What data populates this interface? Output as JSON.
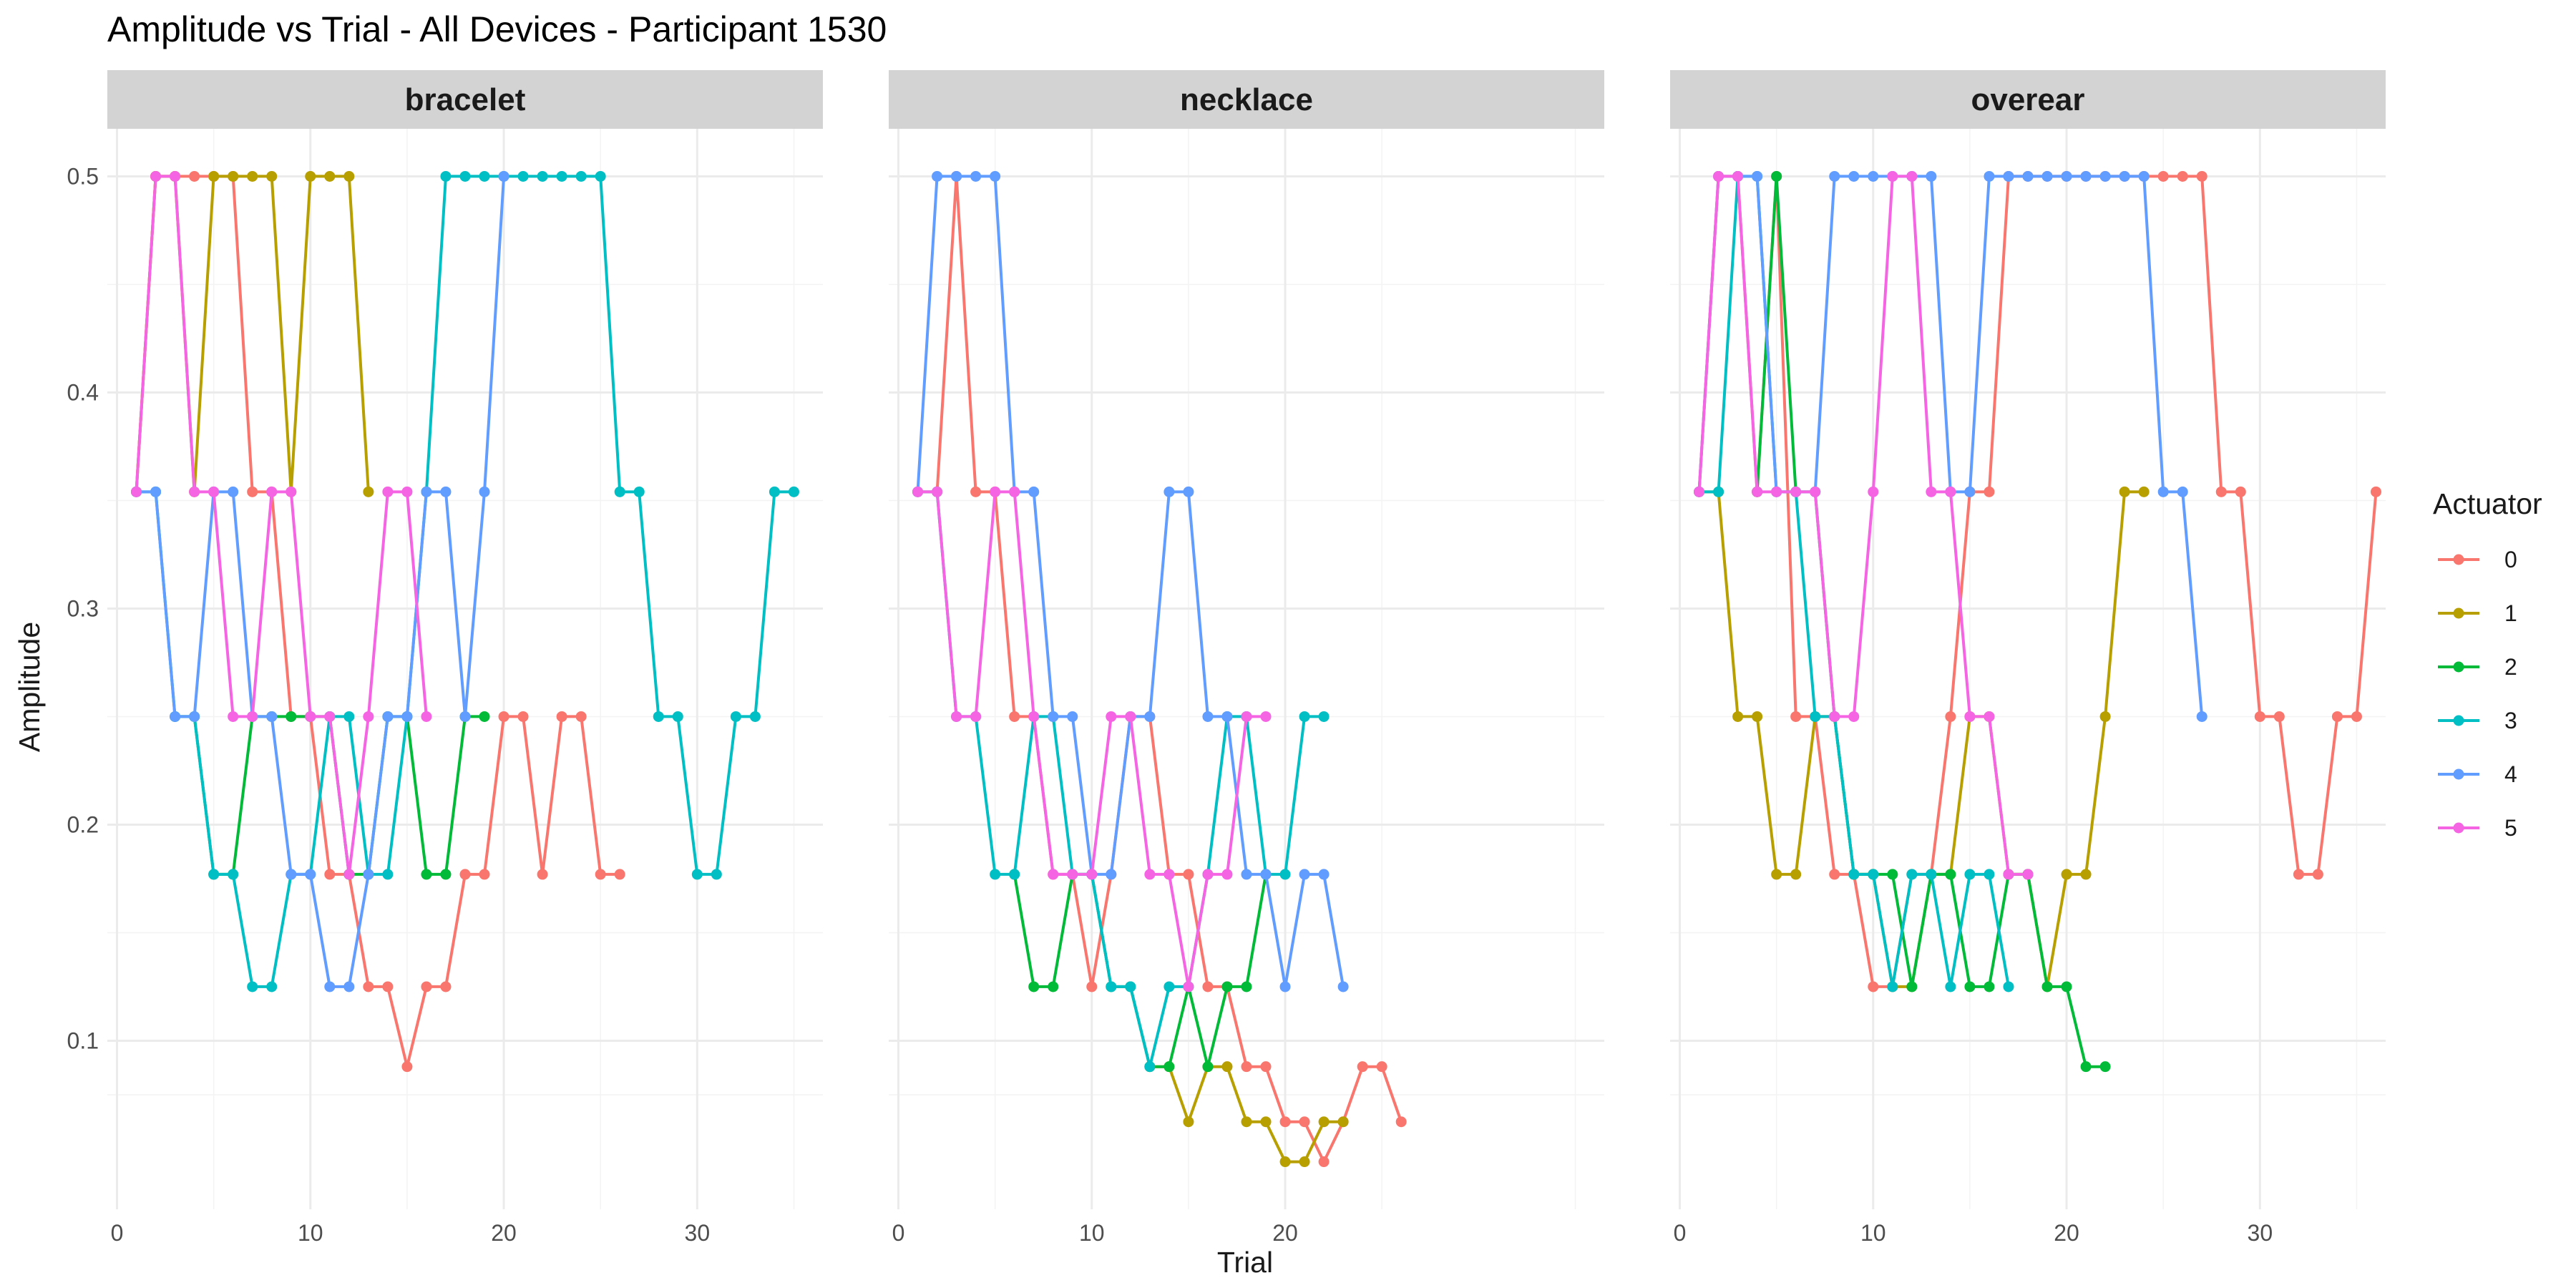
{
  "chart_data": {
    "type": "line",
    "title": "Amplitude vs Trial - All Devices - Participant 1530",
    "xlabel": "Trial",
    "ylabel": "Amplitude",
    "xlim": [
      -0.5,
      36.5
    ],
    "ylim": [
      0.022,
      0.522
    ],
    "x_ticks": [
      0,
      10,
      20,
      30
    ],
    "y_ticks": [
      0.1,
      0.2,
      0.3,
      0.4,
      0.5
    ],
    "grid": true,
    "legend": {
      "title": "Actuator",
      "position": "right",
      "entries": [
        "0",
        "1",
        "2",
        "3",
        "4",
        "5"
      ]
    },
    "colors": {
      "0": "#F8766D",
      "1": "#B79F00",
      "2": "#00BA38",
      "3": "#00BFC4",
      "4": "#619CFF",
      "5": "#F564E3"
    },
    "panels": [
      {
        "name": "bracelet",
        "x_ticks": [
          0,
          10,
          20,
          30
        ],
        "series": [
          {
            "name": "0",
            "x": [
              1,
              2,
              3,
              4,
              5,
              6,
              7,
              8,
              9,
              10,
              11,
              12,
              13,
              14,
              15,
              16,
              17,
              18,
              19,
              20,
              21,
              22,
              23,
              24,
              25,
              26
            ],
            "y": [
              0.354,
              0.5,
              0.5,
              0.5,
              0.5,
              0.5,
              0.354,
              0.354,
              0.25,
              0.25,
              0.177,
              0.177,
              0.125,
              0.125,
              0.088,
              0.125,
              0.125,
              0.177,
              0.177,
              0.25,
              0.25,
              0.177,
              0.25,
              0.25,
              0.177,
              0.177
            ]
          },
          {
            "name": "1",
            "x": [
              1,
              2,
              3,
              4,
              5,
              6,
              7,
              8,
              9,
              10,
              11,
              12,
              13
            ],
            "y": [
              0.354,
              0.5,
              0.5,
              0.354,
              0.5,
              0.5,
              0.5,
              0.5,
              0.354,
              0.5,
              0.5,
              0.5,
              0.354
            ]
          },
          {
            "name": "2",
            "x": [
              3,
              4,
              5,
              6,
              7,
              8,
              9,
              10,
              11,
              12,
              13,
              14,
              15,
              16,
              17,
              18,
              19
            ],
            "y": [
              0.25,
              0.25,
              0.177,
              0.177,
              0.25,
              0.25,
              0.25,
              0.25,
              0.25,
              0.177,
              0.177,
              0.25,
              0.25,
              0.177,
              0.177,
              0.25,
              0.25
            ]
          },
          {
            "name": "3",
            "x": [
              1,
              2,
              3,
              4,
              5,
              6,
              7,
              8,
              9,
              10,
              11,
              12,
              13,
              14,
              15,
              16,
              17,
              18,
              19,
              20,
              21,
              22,
              23,
              24,
              25,
              26,
              27,
              28,
              29,
              30,
              31,
              32,
              33,
              34,
              35
            ],
            "y": [
              0.354,
              0.354,
              0.25,
              0.25,
              0.177,
              0.177,
              0.125,
              0.125,
              0.177,
              0.177,
              0.25,
              0.25,
              0.177,
              0.177,
              0.25,
              0.354,
              0.5,
              0.5,
              0.5,
              0.5,
              0.5,
              0.5,
              0.5,
              0.5,
              0.5,
              0.354,
              0.354,
              0.25,
              0.25,
              0.177,
              0.177,
              0.25,
              0.25,
              0.354,
              0.354
            ]
          },
          {
            "name": "4",
            "x": [
              1,
              2,
              3,
              4,
              5,
              6,
              7,
              8,
              9,
              10,
              11,
              12,
              13,
              14,
              15,
              16,
              17,
              18,
              19,
              20
            ],
            "y": [
              0.354,
              0.354,
              0.25,
              0.25,
              0.354,
              0.354,
              0.25,
              0.25,
              0.177,
              0.177,
              0.125,
              0.125,
              0.177,
              0.25,
              0.25,
              0.354,
              0.354,
              0.25,
              0.354,
              0.5
            ]
          },
          {
            "name": "5",
            "x": [
              1,
              2,
              3,
              4,
              5,
              6,
              7,
              8,
              9,
              10,
              11,
              12,
              13,
              14,
              15,
              16
            ],
            "y": [
              0.354,
              0.5,
              0.5,
              0.354,
              0.354,
              0.25,
              0.25,
              0.354,
              0.354,
              0.25,
              0.25,
              0.177,
              0.25,
              0.354,
              0.354,
              0.25
            ]
          }
        ]
      },
      {
        "name": "necklace",
        "x_ticks": [
          0,
          10,
          20
        ],
        "series": [
          {
            "name": "0",
            "x": [
              1,
              2,
              3,
              4,
              5,
              6,
              7,
              8,
              9,
              10,
              11,
              12,
              13,
              14,
              15,
              16,
              17,
              18,
              19,
              20,
              21,
              22,
              23,
              24,
              25,
              26
            ],
            "y": [
              0.354,
              0.354,
              0.5,
              0.354,
              0.354,
              0.25,
              0.25,
              0.177,
              0.177,
              0.125,
              0.177,
              0.25,
              0.25,
              0.177,
              0.177,
              0.125,
              0.125,
              0.088,
              0.088,
              0.0625,
              0.0625,
              0.044,
              0.0625,
              0.088,
              0.088,
              0.0625
            ]
          },
          {
            "name": "1",
            "x": [
              13,
              14,
              15,
              16,
              17,
              18,
              19,
              20,
              21,
              22,
              23
            ],
            "y": [
              0.088,
              0.088,
              0.0625,
              0.088,
              0.088,
              0.0625,
              0.0625,
              0.044,
              0.044,
              0.0625,
              0.0625
            ]
          },
          {
            "name": "2",
            "x": [
              6,
              7,
              8,
              9,
              10,
              11,
              12,
              13,
              14,
              15,
              16,
              17,
              18,
              19
            ],
            "y": [
              0.177,
              0.125,
              0.125,
              0.177,
              0.177,
              0.125,
              0.125,
              0.088,
              0.088,
              0.125,
              0.088,
              0.125,
              0.125,
              0.177
            ]
          },
          {
            "name": "3",
            "x": [
              1,
              2,
              3,
              4,
              5,
              6,
              7,
              8,
              9,
              10,
              11,
              12,
              13,
              14,
              15,
              16,
              17,
              18,
              19,
              20,
              21,
              22
            ],
            "y": [
              0.354,
              0.354,
              0.25,
              0.25,
              0.177,
              0.177,
              0.25,
              0.25,
              0.177,
              0.177,
              0.125,
              0.125,
              0.088,
              0.125,
              0.125,
              0.177,
              0.25,
              0.25,
              0.177,
              0.177,
              0.25,
              0.25
            ]
          },
          {
            "name": "4",
            "x": [
              1,
              2,
              3,
              4,
              5,
              6,
              7,
              8,
              9,
              10,
              11,
              12,
              13,
              14,
              15,
              16,
              17,
              18,
              19,
              20,
              21,
              22,
              23
            ],
            "y": [
              0.354,
              0.5,
              0.5,
              0.5,
              0.5,
              0.354,
              0.354,
              0.25,
              0.25,
              0.177,
              0.177,
              0.25,
              0.25,
              0.354,
              0.354,
              0.25,
              0.25,
              0.177,
              0.177,
              0.125,
              0.177,
              0.177,
              0.125
            ]
          },
          {
            "name": "5",
            "x": [
              1,
              2,
              3,
              4,
              5,
              6,
              7,
              8,
              9,
              10,
              11,
              12,
              13,
              14,
              15,
              16,
              17,
              18,
              19
            ],
            "y": [
              0.354,
              0.354,
              0.25,
              0.25,
              0.354,
              0.354,
              0.25,
              0.177,
              0.177,
              0.177,
              0.25,
              0.25,
              0.177,
              0.177,
              0.125,
              0.177,
              0.177,
              0.25,
              0.25
            ]
          }
        ]
      },
      {
        "name": "overear",
        "x_ticks": [
          0,
          10,
          20,
          30
        ],
        "series": [
          {
            "name": "0",
            "x": [
              1,
              2,
              3,
              4,
              5,
              6,
              7,
              8,
              9,
              10,
              11,
              12,
              13,
              14,
              15,
              16,
              17,
              18,
              19,
              20,
              21,
              22,
              23,
              24,
              25,
              26,
              27,
              28,
              29,
              30,
              31,
              32,
              33,
              34,
              35,
              36
            ],
            "y": [
              0.354,
              0.5,
              0.5,
              0.354,
              0.5,
              0.25,
              0.25,
              0.177,
              0.177,
              0.125,
              0.125,
              0.177,
              0.177,
              0.25,
              0.354,
              0.354,
              0.5,
              0.5,
              0.5,
              0.5,
              0.5,
              0.5,
              0.5,
              0.5,
              0.5,
              0.5,
              0.5,
              0.354,
              0.354,
              0.25,
              0.25,
              0.177,
              0.177,
              0.25,
              0.25,
              0.354
            ]
          },
          {
            "name": "1",
            "x": [
              1,
              2,
              3,
              4,
              5,
              6,
              7,
              8,
              9,
              10,
              11,
              12,
              13,
              14,
              15,
              16,
              17,
              18,
              19,
              20,
              21,
              22,
              23,
              24
            ],
            "y": [
              0.354,
              0.354,
              0.25,
              0.25,
              0.177,
              0.177,
              0.25,
              0.25,
              0.177,
              0.177,
              0.125,
              0.125,
              0.177,
              0.177,
              0.25,
              0.25,
              0.177,
              0.177,
              0.125,
              0.177,
              0.177,
              0.25,
              0.354,
              0.354
            ]
          },
          {
            "name": "2",
            "x": [
              4,
              5,
              6,
              7,
              8,
              9,
              10,
              11,
              12,
              13,
              14,
              15,
              16,
              17,
              18,
              19,
              20,
              21,
              22
            ],
            "y": [
              0.354,
              0.5,
              0.354,
              0.354,
              0.25,
              0.177,
              0.177,
              0.177,
              0.125,
              0.177,
              0.177,
              0.125,
              0.125,
              0.177,
              0.177,
              0.125,
              0.125,
              0.088,
              0.088
            ]
          },
          {
            "name": "3",
            "x": [
              1,
              2,
              3,
              4,
              5,
              6,
              7,
              8,
              9,
              10,
              11,
              12,
              13,
              14,
              15,
              16,
              17
            ],
            "y": [
              0.354,
              0.354,
              0.5,
              0.5,
              0.354,
              0.354,
              0.25,
              0.25,
              0.177,
              0.177,
              0.125,
              0.177,
              0.177,
              0.125,
              0.177,
              0.177,
              0.125
            ]
          },
          {
            "name": "4",
            "x": [
              1,
              2,
              3,
              4,
              5,
              6,
              7,
              8,
              9,
              10,
              11,
              12,
              13,
              14,
              15,
              16,
              17,
              18,
              19,
              20,
              21,
              22,
              23,
              24,
              25,
              26,
              27
            ],
            "y": [
              0.354,
              0.5,
              0.5,
              0.5,
              0.354,
              0.354,
              0.354,
              0.5,
              0.5,
              0.5,
              0.5,
              0.5,
              0.5,
              0.354,
              0.354,
              0.5,
              0.5,
              0.5,
              0.5,
              0.5,
              0.5,
              0.5,
              0.5,
              0.5,
              0.354,
              0.354,
              0.25
            ]
          },
          {
            "name": "5",
            "x": [
              1,
              2,
              3,
              4,
              5,
              6,
              7,
              8,
              9,
              10,
              11,
              12,
              13,
              14,
              15,
              16,
              17,
              18
            ],
            "y": [
              0.354,
              0.5,
              0.5,
              0.354,
              0.354,
              0.354,
              0.354,
              0.25,
              0.25,
              0.354,
              0.5,
              0.5,
              0.354,
              0.354,
              0.25,
              0.25,
              0.177,
              0.177
            ]
          }
        ]
      }
    ]
  }
}
